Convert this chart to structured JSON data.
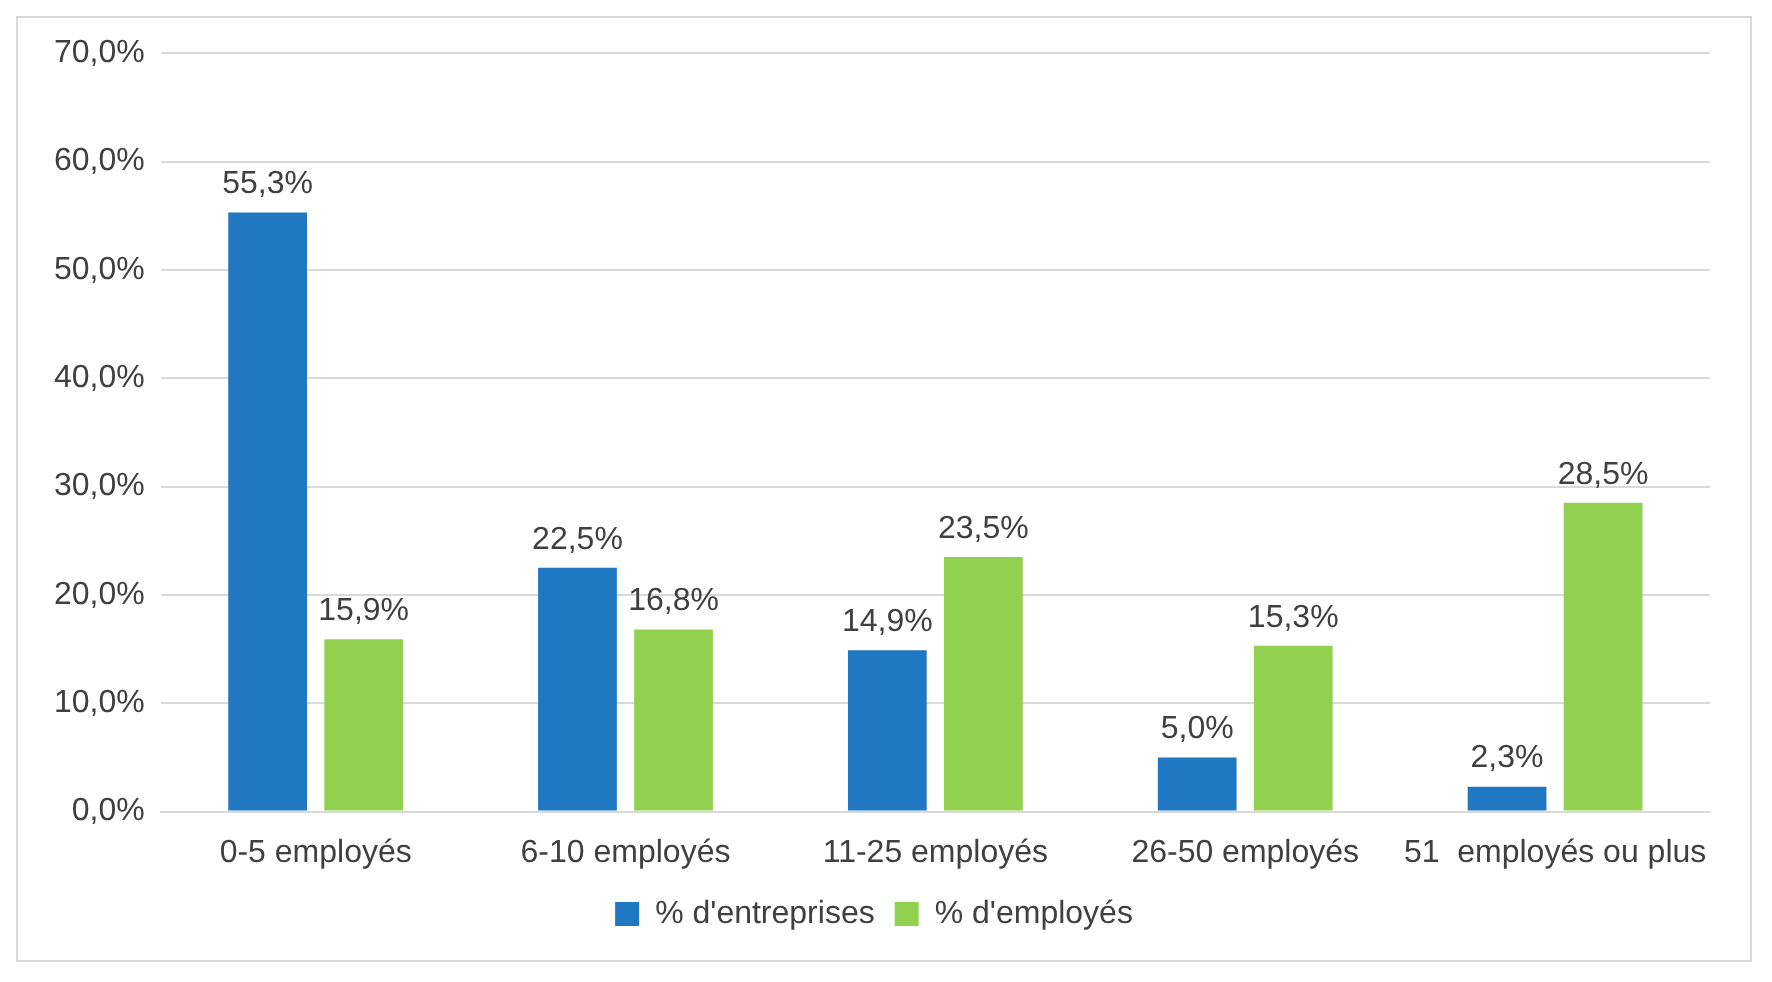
{
  "chart_data": {
    "type": "bar",
    "categories": [
      "0-5 employés",
      "6-10 employés",
      "11-25 employés",
      "26-50 employés",
      "51  employés ou plus"
    ],
    "series": [
      {
        "name": "% d'entreprises",
        "color": "#1f78c1",
        "values": [
          55.3,
          22.5,
          14.9,
          5.0,
          2.3
        ],
        "value_labels": [
          "55,3%",
          "22,5%",
          "14,9%",
          "5,0%",
          "2,3%"
        ]
      },
      {
        "name": "% d'employés",
        "color": "#92d050",
        "values": [
          15.9,
          16.8,
          23.5,
          15.3,
          28.5
        ],
        "value_labels": [
          "15,9%",
          "16,8%",
          "23,5%",
          "15,3%",
          "28,5%"
        ]
      }
    ],
    "ylim": [
      0,
      70
    ],
    "yticks": [
      {
        "value": 0,
        "label": "0,0%"
      },
      {
        "value": 10,
        "label": "10,0%"
      },
      {
        "value": 20,
        "label": "20,0%"
      },
      {
        "value": 30,
        "label": "30,0%"
      },
      {
        "value": 40,
        "label": "40,0%"
      },
      {
        "value": 50,
        "label": "50,0%"
      },
      {
        "value": 60,
        "label": "60,0%"
      },
      {
        "value": 70,
        "label": "70,0%"
      }
    ],
    "grid": "y",
    "legend": "bottom"
  }
}
